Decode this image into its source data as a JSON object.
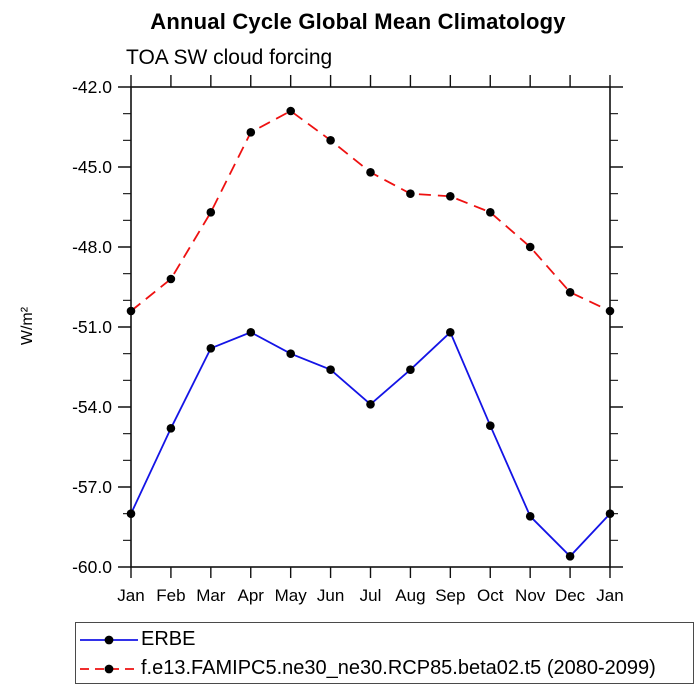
{
  "chart_data": {
    "type": "line",
    "title": "Annual Cycle Global Mean Climatology",
    "subtitle": "TOA SW cloud forcing",
    "ylabel": "W/m²",
    "xlabel": "",
    "categories": [
      "Jan",
      "Feb",
      "Mar",
      "Apr",
      "May",
      "Jun",
      "Jul",
      "Aug",
      "Sep",
      "Oct",
      "Nov",
      "Dec",
      "Jan"
    ],
    "ylim": [
      -60,
      -42
    ],
    "yticks": {
      "labels": [
        "-42.0",
        "-45.0",
        "-48.0",
        "-51.0",
        "-54.0",
        "-57.0",
        "-60.0"
      ],
      "major_step": 3,
      "minor_step": 1
    },
    "grid": false,
    "legend_position": "bottom",
    "axis_color": "#111111",
    "marker": "filled-circle",
    "marker_color": "#000000",
    "series": [
      {
        "name": "ERBE",
        "color": "#1414e6",
        "line_style": "solid",
        "values": [
          -58.0,
          -54.8,
          -51.8,
          -51.2,
          -52.0,
          -52.6,
          -53.9,
          -52.6,
          -51.2,
          -54.7,
          -58.1,
          -59.6,
          -58.0
        ]
      },
      {
        "name": "f.e13.FAMIPC5.ne30_ne30.RCP85.beta02.t5 (2080-2099)",
        "color": "#ee1111",
        "line_style": "dashed",
        "values": [
          -50.4,
          -49.2,
          -46.7,
          -43.7,
          -42.9,
          -44.0,
          -45.2,
          -46.0,
          -46.1,
          -46.7,
          -48.0,
          -49.7,
          -50.4
        ]
      }
    ]
  }
}
